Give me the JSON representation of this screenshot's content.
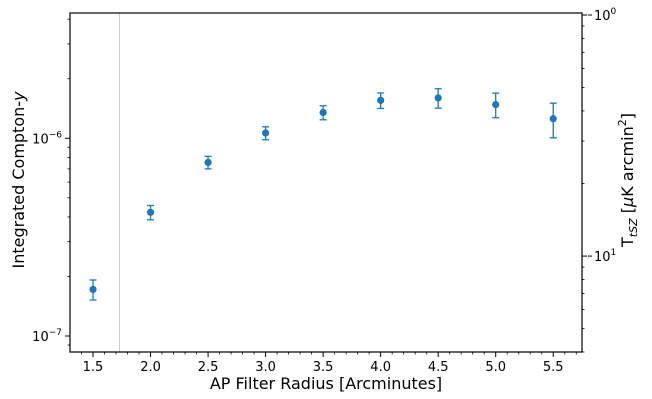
{
  "chart_data": {
    "type": "scatter",
    "xlabel": "AP Filter Radius [Arcminutes]",
    "ylabel": "Integrated Compton-y",
    "ylabel_right": "T_tSZ [μK arcmin²]",
    "x_ticks": [
      "1.5",
      "2.0",
      "2.5",
      "3.0",
      "3.5",
      "4.0",
      "4.5",
      "5.0",
      "5.5"
    ],
    "x_tick_values": [
      1.5,
      2.0,
      2.5,
      3.0,
      3.5,
      4.0,
      4.5,
      5.0,
      5.5
    ],
    "xlim": [
      1.3,
      5.75
    ],
    "ylim": [
      8.3e-08,
      4.3e-06
    ],
    "yscale": "log",
    "y_tick_labels": [
      "10^-7",
      "10^-6"
    ],
    "y2scale": "log",
    "y2_tick_labels": [
      "10^0",
      "10^1"
    ],
    "vertical_line_x": 1.73,
    "grid": false,
    "colors": {
      "points": "#1f77b4",
      "vline": "#cccccc",
      "axes": "#000000"
    },
    "series": [
      {
        "x": [
          1.5,
          2.0,
          2.5,
          3.0,
          3.5,
          4.0,
          4.5,
          5.0,
          5.5
        ],
        "y": [
          1.72e-07,
          4.22e-07,
          7.55e-07,
          1.063e-06,
          1.35e-06,
          1.555e-06,
          1.6e-06,
          1.48e-06,
          1.255e-06
        ],
        "yerr_lower": [
          2e-08,
          3.5e-08,
          5.5e-08,
          8e-08,
          1.1e-07,
          1.4e-07,
          1.8e-07,
          2.1e-07,
          2.5e-07
        ],
        "yerr_upper": [
          2e-08,
          3.5e-08,
          5.5e-08,
          8e-08,
          1.1e-07,
          1.4e-07,
          1.8e-07,
          2.1e-07,
          2.5e-07
        ]
      }
    ]
  }
}
